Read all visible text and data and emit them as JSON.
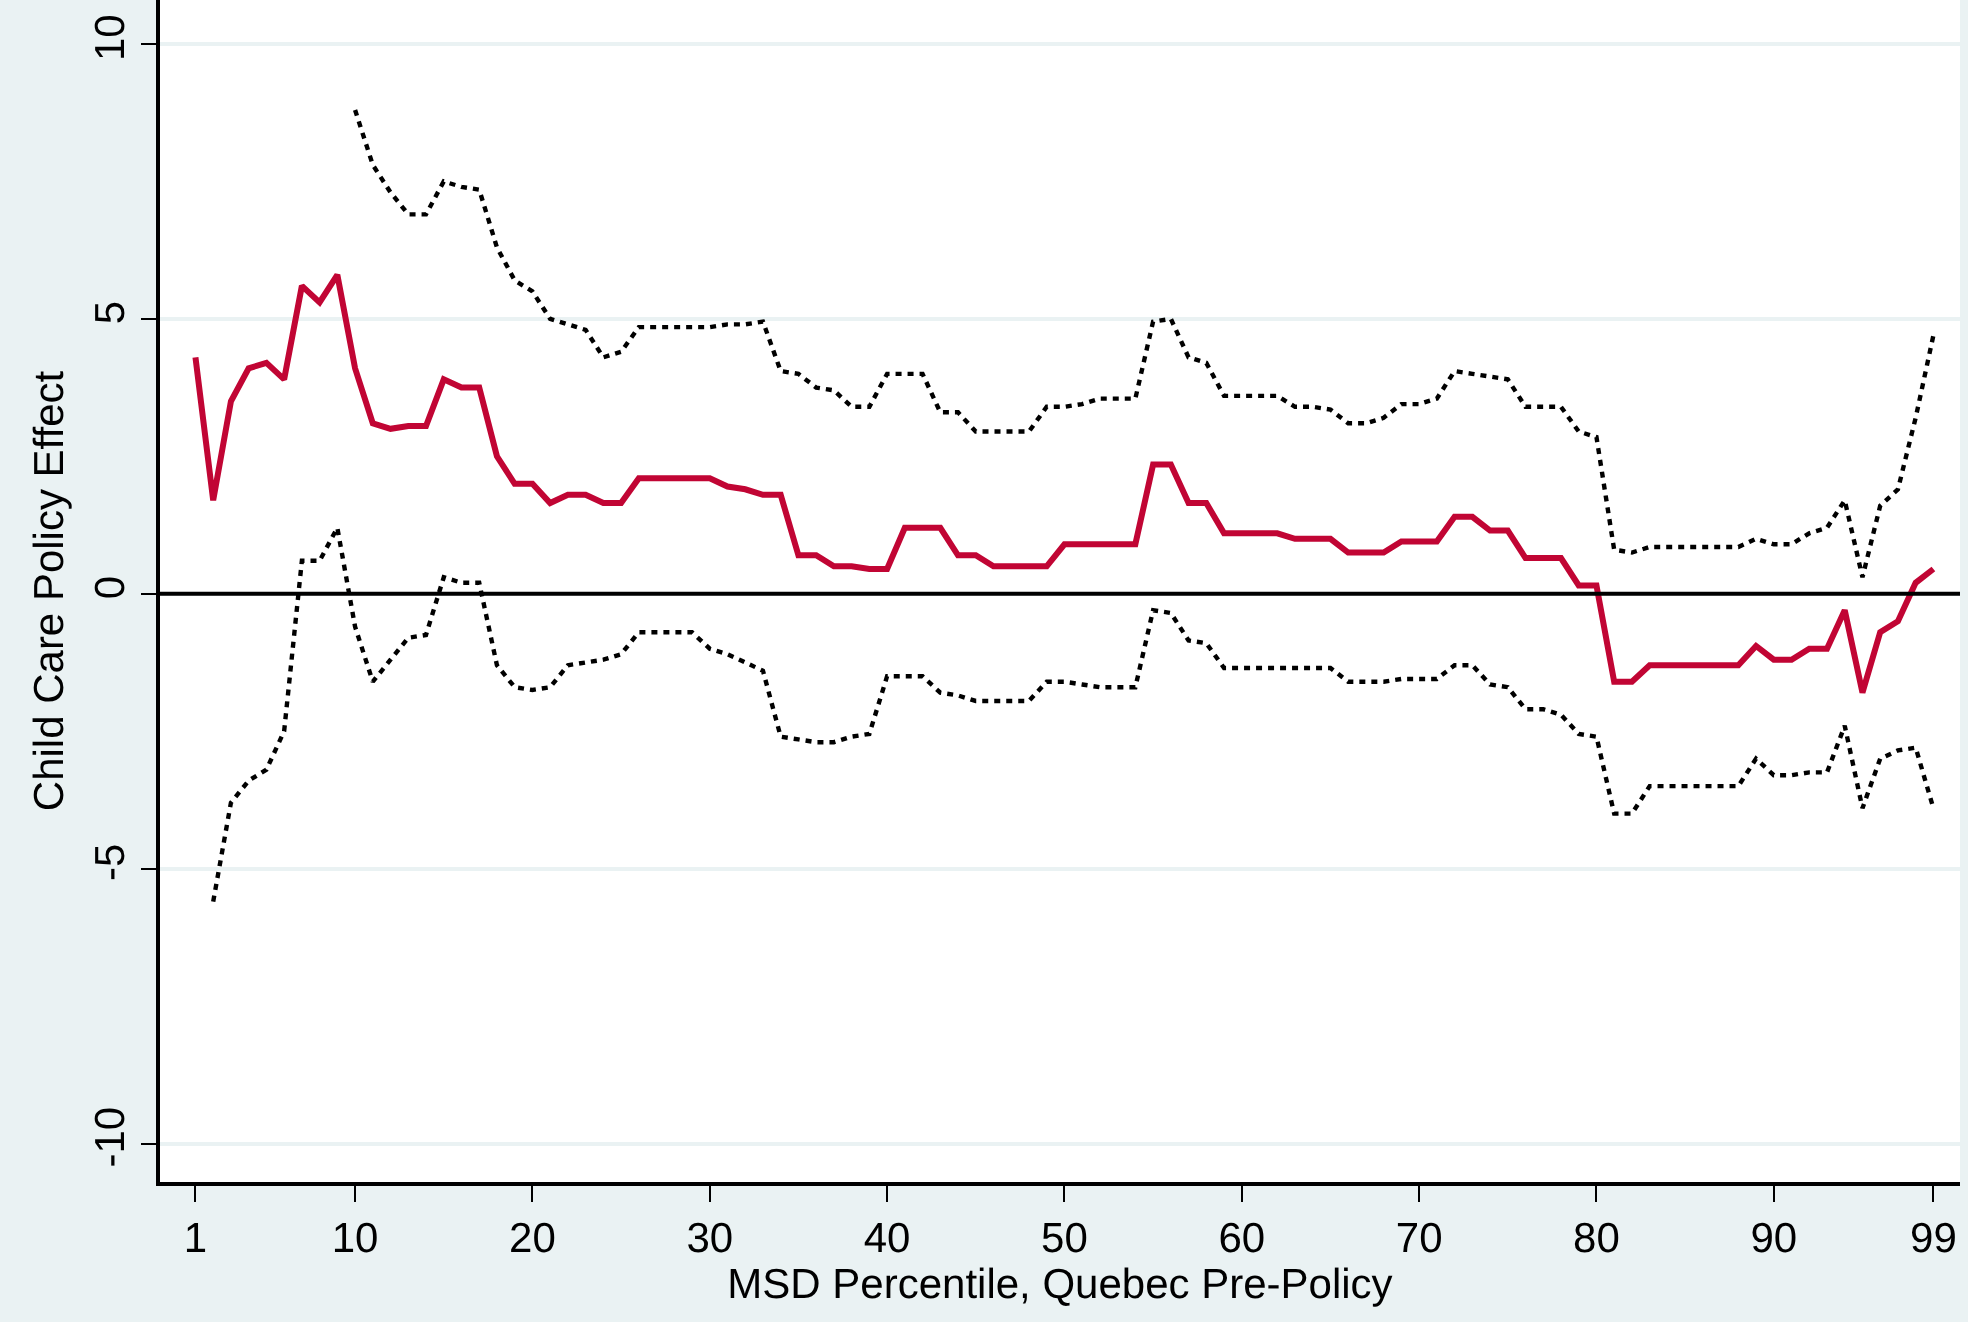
{
  "chart_data": {
    "type": "line",
    "xlabel": "MSD Percentile, Quebec Pre-Policy",
    "ylabel": "Child Care Policy Effect",
    "xlim": [
      -1,
      100.5
    ],
    "xticks": [
      1,
      10,
      20,
      30,
      40,
      50,
      60,
      70,
      80,
      90,
      99
    ],
    "ylim": [
      -10.7,
      10.8
    ],
    "yticks": [
      -10,
      -5,
      0,
      5,
      10
    ],
    "grid": "y",
    "marker": "none",
    "ref_lines": [
      {
        "axis": "y",
        "value": 0,
        "color": "#000000",
        "line_style": "solid"
      }
    ],
    "series": [
      {
        "color": "#c10534",
        "line_style": "solid",
        "x": [
          1,
          2,
          3,
          4,
          5,
          6,
          7,
          8,
          9,
          10,
          11,
          12,
          13,
          14,
          15,
          16,
          17,
          18,
          19,
          20,
          21,
          22,
          23,
          24,
          25,
          26,
          27,
          28,
          29,
          30,
          31,
          32,
          33,
          34,
          35,
          36,
          37,
          38,
          39,
          40,
          41,
          42,
          43,
          44,
          45,
          46,
          47,
          48,
          49,
          50,
          51,
          52,
          53,
          54,
          55,
          56,
          57,
          58,
          59,
          60,
          61,
          62,
          63,
          64,
          65,
          66,
          67,
          68,
          69,
          70,
          71,
          72,
          73,
          74,
          75,
          76,
          77,
          78,
          79,
          80,
          81,
          82,
          83,
          84,
          85,
          86,
          87,
          88,
          89,
          90,
          91,
          92,
          93,
          94,
          95,
          96,
          97,
          98,
          99
        ],
        "values": [
          4.3,
          1.7,
          3.5,
          4.1,
          4.2,
          3.9,
          5.6,
          5.3,
          5.8,
          4.1,
          3.1,
          3.0,
          3.05,
          3.05,
          3.9,
          3.75,
          3.75,
          2.5,
          2.0,
          2.0,
          1.65,
          1.8,
          1.8,
          1.65,
          1.65,
          2.1,
          2.1,
          2.1,
          2.1,
          2.1,
          1.95,
          1.9,
          1.8,
          1.8,
          0.7,
          0.7,
          0.5,
          0.5,
          0.45,
          0.45,
          1.2,
          1.2,
          1.2,
          0.7,
          0.7,
          0.5,
          0.5,
          0.5,
          0.5,
          0.9,
          0.9,
          0.9,
          0.9,
          0.9,
          2.35,
          2.35,
          1.65,
          1.65,
          1.1,
          1.1,
          1.1,
          1.1,
          1.0,
          1.0,
          1.0,
          0.75,
          0.75,
          0.75,
          0.95,
          0.95,
          0.95,
          1.4,
          1.4,
          1.15,
          1.15,
          0.65,
          0.65,
          0.65,
          0.15,
          0.15,
          -1.6,
          -1.6,
          -1.3,
          -1.3,
          -1.3,
          -1.3,
          -1.3,
          -1.3,
          -0.95,
          -1.2,
          -1.2,
          -1.0,
          -1.0,
          -0.3,
          -1.8,
          -0.7,
          -0.5,
          0.2,
          0.45
        ]
      },
      {
        "color": "#000000",
        "line_style": "dotted",
        "x": [
          10,
          11,
          12,
          13,
          14,
          15,
          16,
          17,
          18,
          19,
          20,
          21,
          22,
          23,
          24,
          25,
          26,
          27,
          28,
          29,
          30,
          31,
          32,
          33,
          34,
          35,
          36,
          37,
          38,
          39,
          40,
          41,
          42,
          43,
          44,
          45,
          46,
          47,
          48,
          49,
          50,
          51,
          52,
          53,
          54,
          55,
          56,
          57,
          58,
          59,
          60,
          61,
          62,
          63,
          64,
          65,
          66,
          67,
          68,
          69,
          70,
          71,
          72,
          73,
          74,
          75,
          76,
          77,
          78,
          79,
          80,
          81,
          82,
          83,
          84,
          85,
          86,
          87,
          88,
          89,
          90,
          91,
          92,
          93,
          94,
          95,
          96,
          97,
          98,
          99
        ],
        "values": [
          8.8,
          7.8,
          7.3,
          6.9,
          6.9,
          7.5,
          7.4,
          7.35,
          6.3,
          5.7,
          5.5,
          5.0,
          4.9,
          4.8,
          4.3,
          4.4,
          4.85,
          4.85,
          4.85,
          4.85,
          4.85,
          4.9,
          4.9,
          4.95,
          4.05,
          4.0,
          3.75,
          3.7,
          3.4,
          3.4,
          4.0,
          4.0,
          4.0,
          3.3,
          3.3,
          2.95,
          2.95,
          2.95,
          2.95,
          3.4,
          3.4,
          3.45,
          3.55,
          3.55,
          3.55,
          4.95,
          5.0,
          4.3,
          4.2,
          3.6,
          3.6,
          3.6,
          3.6,
          3.4,
          3.4,
          3.35,
          3.1,
          3.1,
          3.2,
          3.45,
          3.45,
          3.55,
          4.05,
          4.0,
          3.95,
          3.9,
          3.4,
          3.4,
          3.4,
          2.95,
          2.85,
          0.8,
          0.75,
          0.85,
          0.85,
          0.85,
          0.85,
          0.85,
          0.85,
          1.0,
          0.9,
          0.9,
          1.1,
          1.2,
          1.7,
          0.3,
          1.6,
          1.9,
          3.2,
          4.7
        ]
      },
      {
        "color": "#000000",
        "line_style": "dotted",
        "x": [
          2,
          3,
          4,
          5,
          6,
          7,
          8,
          9,
          10,
          11,
          12,
          13,
          14,
          15,
          16,
          17,
          18,
          19,
          20,
          21,
          22,
          23,
          24,
          25,
          26,
          27,
          28,
          29,
          30,
          31,
          32,
          33,
          34,
          35,
          36,
          37,
          38,
          39,
          40,
          41,
          42,
          43,
          44,
          45,
          46,
          47,
          48,
          49,
          50,
          51,
          52,
          53,
          54,
          55,
          56,
          57,
          58,
          59,
          60,
          61,
          62,
          63,
          64,
          65,
          66,
          67,
          68,
          69,
          70,
          71,
          72,
          73,
          74,
          75,
          76,
          77,
          78,
          79,
          80,
          81,
          82,
          83,
          84,
          85,
          86,
          87,
          88,
          89,
          90,
          91,
          92,
          93,
          94,
          95,
          96,
          97,
          98,
          99
        ],
        "values": [
          -5.6,
          -3.8,
          -3.4,
          -3.2,
          -2.5,
          0.6,
          0.6,
          1.2,
          -0.6,
          -1.6,
          -1.2,
          -0.8,
          -0.75,
          0.3,
          0.2,
          0.2,
          -1.3,
          -1.7,
          -1.75,
          -1.7,
          -1.3,
          -1.25,
          -1.2,
          -1.1,
          -0.7,
          -0.7,
          -0.7,
          -0.7,
          -1.0,
          -1.1,
          -1.25,
          -1.4,
          -2.6,
          -2.65,
          -2.7,
          -2.7,
          -2.6,
          -2.55,
          -1.5,
          -1.5,
          -1.5,
          -1.8,
          -1.85,
          -1.95,
          -1.95,
          -1.95,
          -1.95,
          -1.6,
          -1.6,
          -1.65,
          -1.7,
          -1.7,
          -1.7,
          -0.3,
          -0.35,
          -0.85,
          -0.9,
          -1.35,
          -1.35,
          -1.35,
          -1.35,
          -1.35,
          -1.35,
          -1.35,
          -1.6,
          -1.6,
          -1.6,
          -1.55,
          -1.55,
          -1.55,
          -1.3,
          -1.3,
          -1.65,
          -1.7,
          -2.1,
          -2.1,
          -2.2,
          -2.55,
          -2.6,
          -4.0,
          -4.0,
          -3.5,
          -3.5,
          -3.5,
          -3.5,
          -3.5,
          -3.5,
          -3.0,
          -3.3,
          -3.3,
          -3.25,
          -3.25,
          -2.4,
          -3.9,
          -3.0,
          -2.85,
          -2.8,
          -3.9
        ]
      }
    ]
  }
}
